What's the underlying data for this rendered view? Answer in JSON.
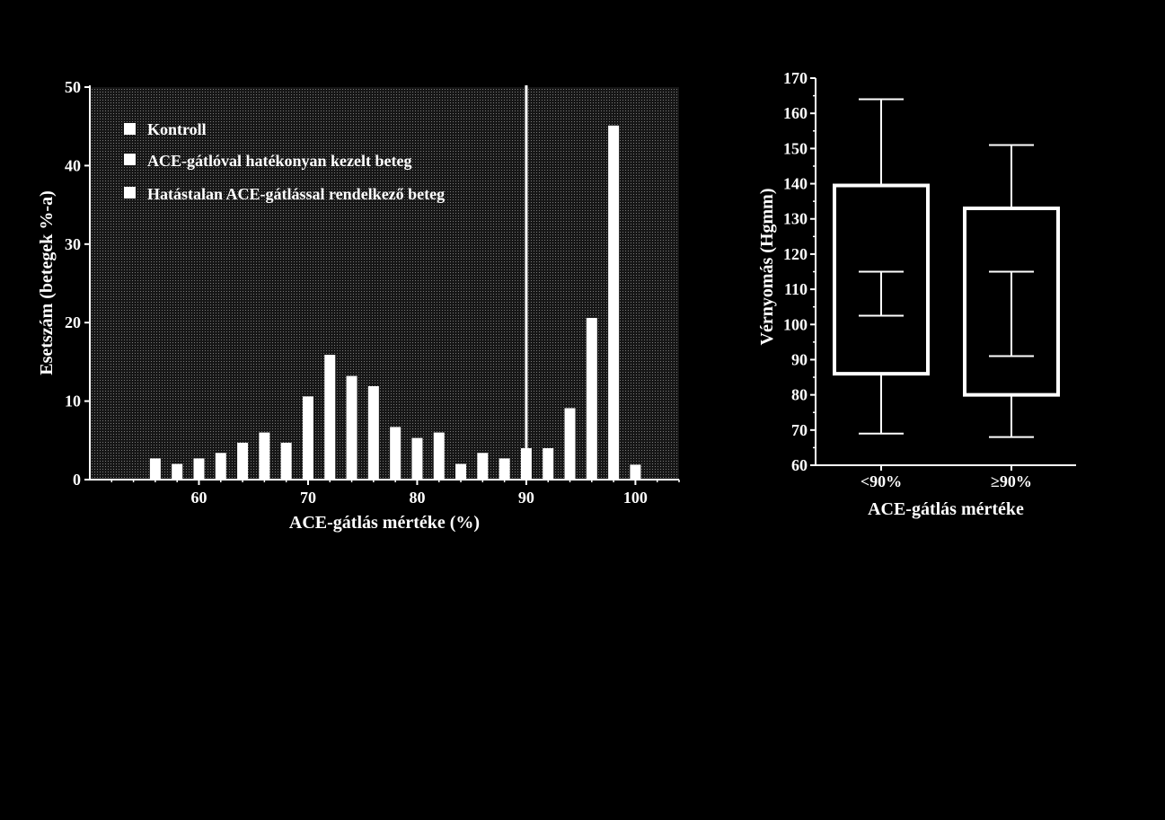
{
  "chart_data": [
    {
      "type": "bar",
      "xlabel": "ACE-gátlás mértéke (%)",
      "ylabel": "Esetszám (betegek %-a)",
      "xlim": [
        50,
        104
      ],
      "ylim": [
        0,
        50
      ],
      "x_ticks": [
        "60",
        "70",
        "80",
        "90",
        "100"
      ],
      "y_ticks": [
        "0",
        "10",
        "20",
        "30",
        "40",
        "50"
      ],
      "legend_position": "top-left",
      "legend": [
        "Kontroll",
        "ACE-gátlóval hatékonyan kezelt beteg",
        "Hatástalan ACE-gátlással rendelkező beteg"
      ],
      "reference_line_x": 90,
      "x": [
        56,
        58,
        60,
        62,
        64,
        66,
        68,
        70,
        72,
        74,
        76,
        78,
        80,
        82,
        84,
        86,
        88,
        90,
        92,
        94,
        96,
        98,
        100
      ],
      "values": [
        2.7,
        2.0,
        2.7,
        3.4,
        4.7,
        6.0,
        4.7,
        10.6,
        15.9,
        13.2,
        11.9,
        6.7,
        5.3,
        6.0,
        2.0,
        3.4,
        2.7,
        4.0,
        4.0,
        9.1,
        20.6,
        45.1,
        1.9
      ]
    },
    {
      "type": "box",
      "xlabel": "ACE-gátlás mértéke",
      "ylabel": "Vérnyomás (Hgmm)",
      "ylim": [
        60,
        170
      ],
      "y_ticks": [
        "60",
        "70",
        "80",
        "90",
        "100",
        "110",
        "120",
        "130",
        "140",
        "150",
        "160",
        "170"
      ],
      "categories": [
        "<90%",
        "≥90%"
      ],
      "boxes": [
        {
          "min": 69,
          "q1": 86,
          "lower_marker": 102.5,
          "upper_marker": 115,
          "q3": 139.5,
          "max": 164
        },
        {
          "min": 68,
          "q1": 80,
          "lower_marker": 91,
          "upper_marker": 115,
          "q3": 133,
          "max": 151
        }
      ]
    }
  ]
}
